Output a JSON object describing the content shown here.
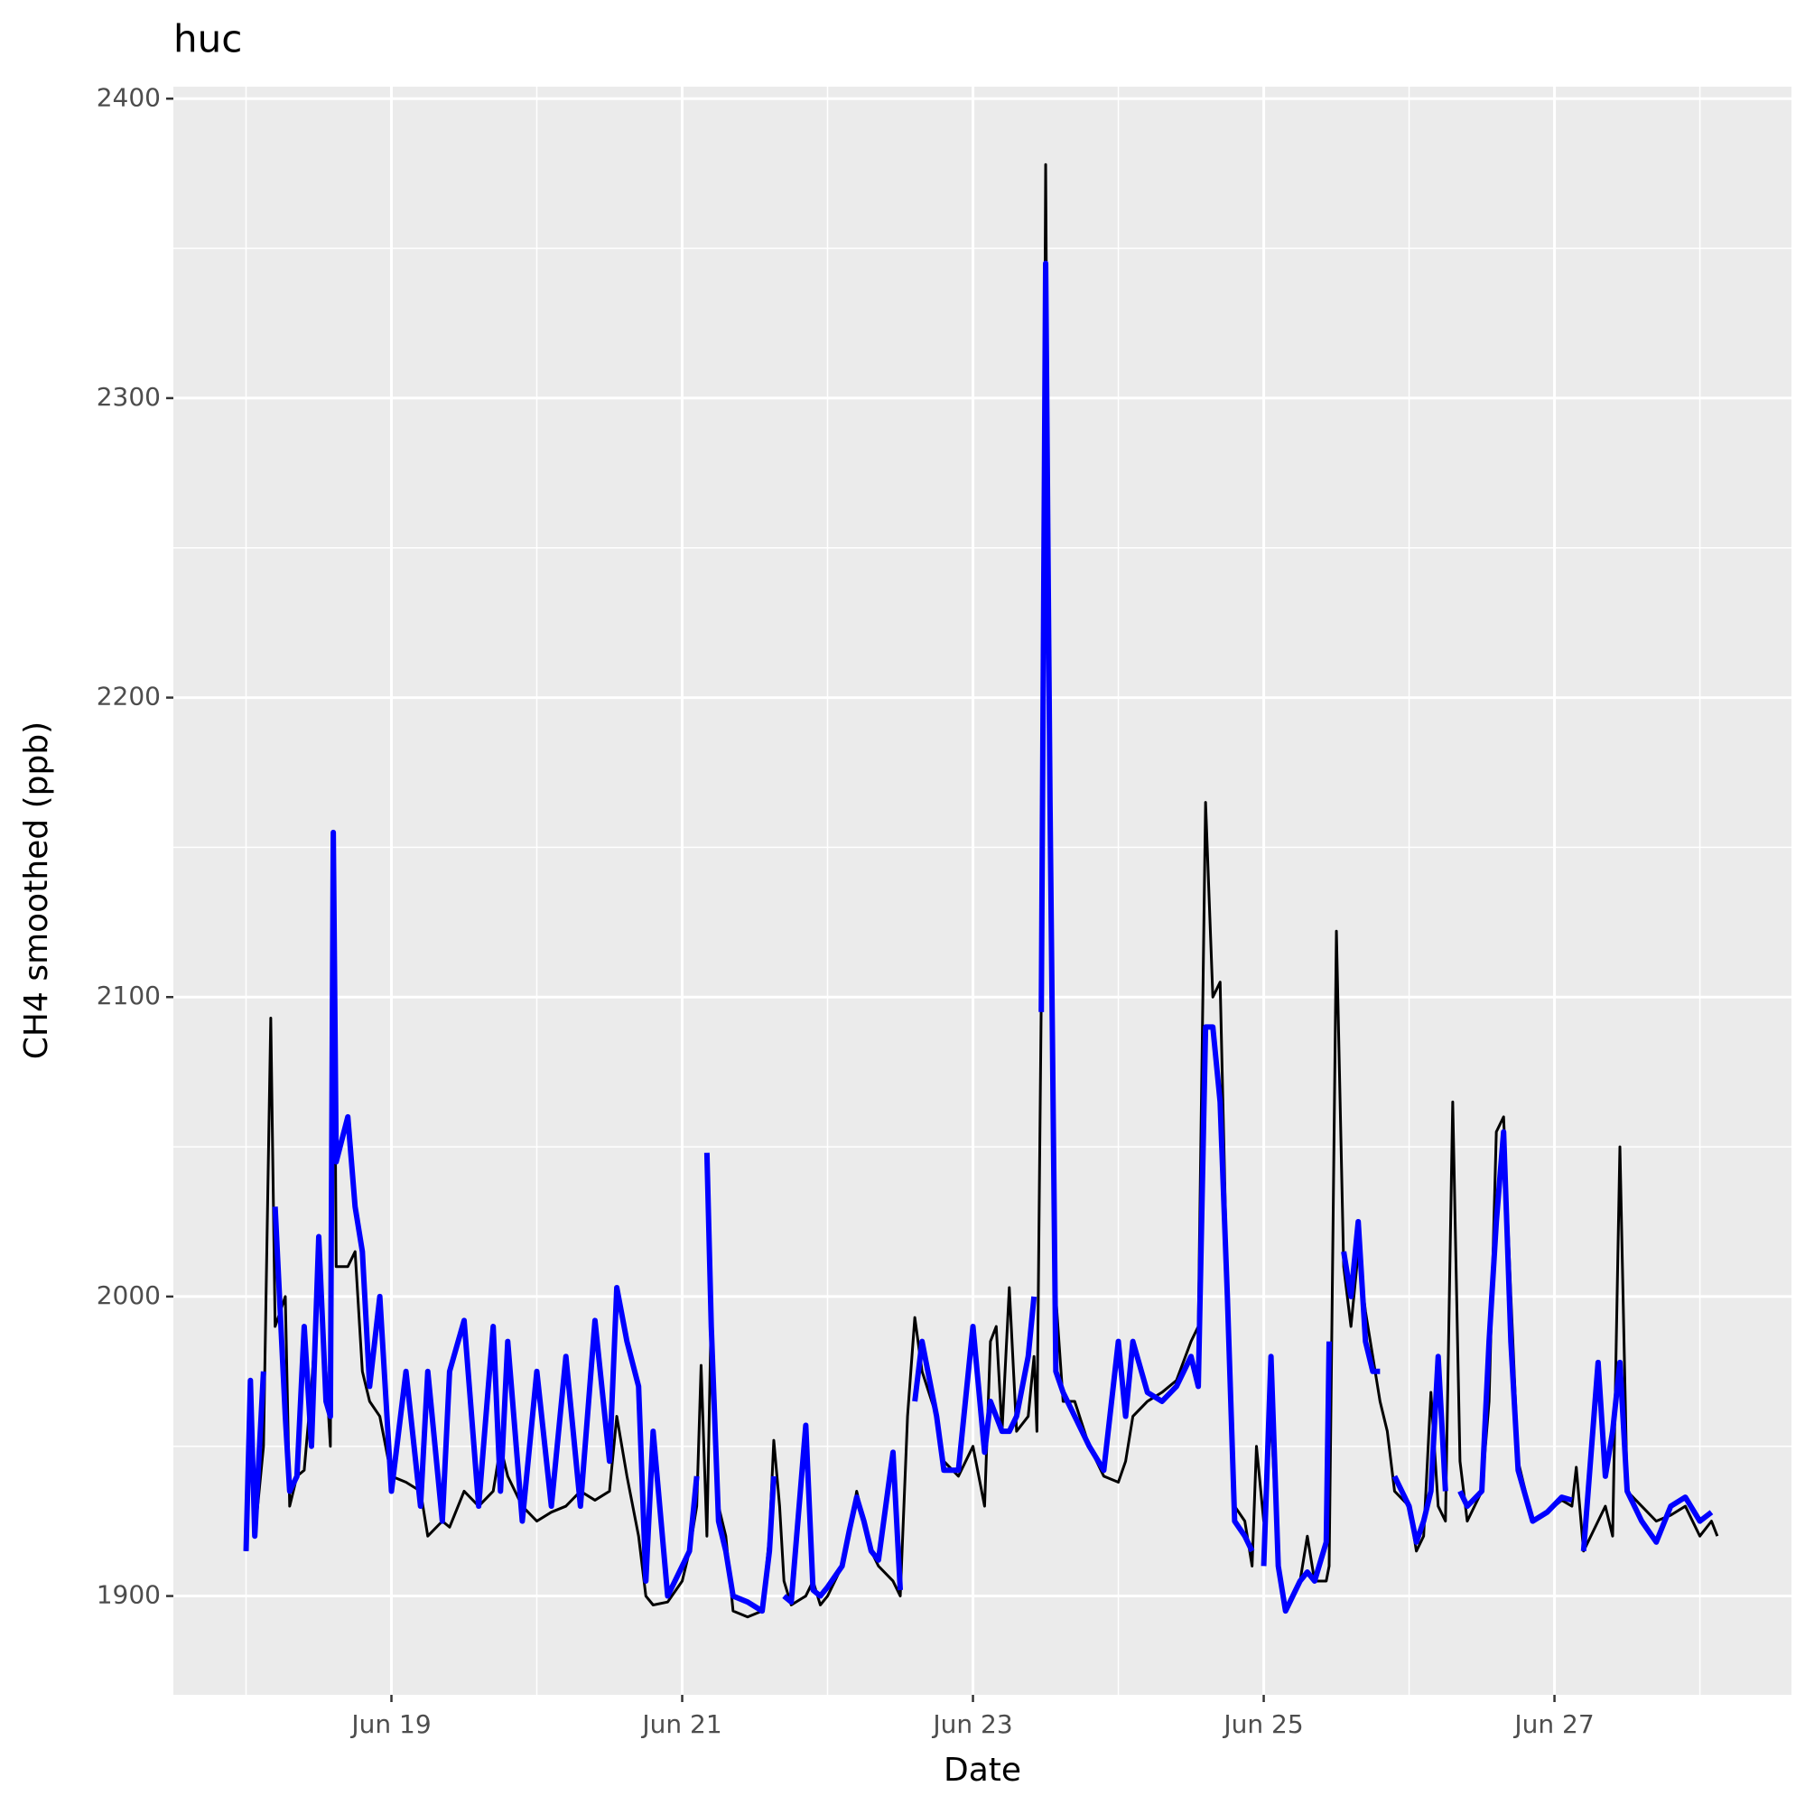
{
  "chart_data": {
    "type": "line",
    "title": "huc",
    "x_label": "Date",
    "y_label": "CH4 smoothed (ppb)",
    "x": [
      18.0,
      18.03,
      18.06,
      18.12,
      18.17,
      18.2,
      18.27,
      18.3,
      18.35,
      18.4,
      18.45,
      18.5,
      18.55,
      18.58,
      18.6,
      18.62,
      18.7,
      18.75,
      18.8,
      18.85,
      18.92,
      19.0,
      19.1,
      19.2,
      19.25,
      19.35,
      19.4,
      19.5,
      19.6,
      19.7,
      19.75,
      19.8,
      19.9,
      20.0,
      20.1,
      20.2,
      20.3,
      20.4,
      20.5,
      20.55,
      20.62,
      20.7,
      20.75,
      20.8,
      20.9,
      21.0,
      21.05,
      21.1,
      21.13,
      21.17,
      21.2,
      21.25,
      21.3,
      21.35,
      21.45,
      21.55,
      21.6,
      21.63,
      21.67,
      21.7,
      21.75,
      21.85,
      21.9,
      21.95,
      22.0,
      22.1,
      22.15,
      22.2,
      22.25,
      22.3,
      22.35,
      22.45,
      22.5,
      22.55,
      22.6,
      22.65,
      22.75,
      22.8,
      22.9,
      23.0,
      23.08,
      23.12,
      23.16,
      23.2,
      23.25,
      23.3,
      23.38,
      23.42,
      23.44,
      23.47,
      23.5,
      23.53,
      23.57,
      23.62,
      23.7,
      23.8,
      23.9,
      24.0,
      24.05,
      24.1,
      24.2,
      24.3,
      24.4,
      24.5,
      24.55,
      24.6,
      24.65,
      24.7,
      24.75,
      24.8,
      24.87,
      24.92,
      24.95,
      25.0,
      25.05,
      25.1,
      25.15,
      25.25,
      25.3,
      25.35,
      25.43,
      25.45,
      25.5,
      25.55,
      25.6,
      25.65,
      25.7,
      25.75,
      25.8,
      25.85,
      25.9,
      26.0,
      26.05,
      26.1,
      26.15,
      26.2,
      26.25,
      26.3,
      26.35,
      26.4,
      26.5,
      26.55,
      26.6,
      26.65,
      26.7,
      26.75,
      26.85,
      26.95,
      27.05,
      27.12,
      27.15,
      27.2,
      27.3,
      27.35,
      27.4,
      27.45,
      27.5,
      27.6,
      27.7,
      27.8,
      27.9,
      28.0,
      28.08,
      28.12
    ],
    "series": [
      {
        "color": "#000000",
        "width": 3,
        "values": [
          1915,
          1968,
          1920,
          1950,
          2093,
          1990,
          2000,
          1930,
          1940,
          1942,
          1970,
          2005,
          1975,
          1950,
          2155,
          2010,
          2010,
          2015,
          1975,
          1965,
          1960,
          1940,
          1938,
          1935,
          1920,
          1925,
          1923,
          1935,
          1930,
          1935,
          1950,
          1940,
          1930,
          1925,
          1928,
          1930,
          1935,
          1932,
          1935,
          1960,
          1940,
          1920,
          1900,
          1897,
          1898,
          1905,
          1915,
          1930,
          1977,
          1920,
          1996,
          1930,
          1920,
          1895,
          1893,
          1895,
          1920,
          1952,
          1930,
          1905,
          1897,
          1900,
          1905,
          1897,
          1900,
          1910,
          1920,
          1935,
          1925,
          1915,
          1910,
          1905,
          1900,
          1960,
          1993,
          1975,
          1960,
          1945,
          1940,
          1950,
          1930,
          1985,
          1990,
          1955,
          2003,
          1955,
          1960,
          1980,
          1955,
          2100,
          2378,
          2140,
          2000,
          1965,
          1965,
          1950,
          1940,
          1938,
          1945,
          1960,
          1965,
          1968,
          1972,
          1985,
          1990,
          2165,
          2100,
          2105,
          2000,
          1930,
          1925,
          1910,
          1950,
          1925,
          1960,
          1910,
          1895,
          1905,
          1920,
          1905,
          1905,
          1910,
          2122,
          2010,
          1990,
          2015,
          1995,
          1980,
          1965,
          1955,
          1935,
          1930,
          1915,
          1920,
          1968,
          1930,
          1925,
          2065,
          1945,
          1925,
          1935,
          1965,
          2055,
          2060,
          2000,
          1945,
          1925,
          1928,
          1932,
          1930,
          1943,
          1915,
          1925,
          1930,
          1920,
          2050,
          1935,
          1930,
          1925,
          1927,
          1930,
          1920,
          1925,
          1920
        ]
      },
      {
        "color": "#0000ff",
        "width": 6,
        "values": [
          1915,
          1972,
          1920,
          1975,
          null,
          2030,
          1960,
          1935,
          1940,
          1990,
          1950,
          2020,
          1965,
          1960,
          2155,
          2045,
          2060,
          2030,
          2015,
          1970,
          2000,
          1935,
          1975,
          1930,
          1975,
          1925,
          1975,
          1992,
          1930,
          1990,
          1935,
          1985,
          1925,
          1975,
          1930,
          1980,
          1930,
          1992,
          1945,
          2003,
          1985,
          1970,
          1905,
          1955,
          1900,
          1910,
          1915,
          1940,
          null,
          2048,
          1990,
          1925,
          1915,
          1900,
          1898,
          1895,
          1915,
          1940,
          null,
          1900,
          1898,
          1957,
          1902,
          1900,
          1903,
          1910,
          1922,
          1933,
          1925,
          1915,
          1912,
          1948,
          1902,
          null,
          1965,
          1985,
          1960,
          1942,
          1942,
          1990,
          1948,
          1965,
          1960,
          1955,
          1955,
          1960,
          1980,
          2000,
          null,
          2095,
          2345,
          2165,
          1975,
          1968,
          1960,
          1950,
          1942,
          1985,
          1960,
          1985,
          1968,
          1965,
          1970,
          1980,
          1970,
          2090,
          2090,
          2065,
          2000,
          1925,
          1920,
          1915,
          null,
          1910,
          1980,
          1910,
          1895,
          1905,
          1908,
          1905,
          1918,
          1985,
          null,
          2015,
          2000,
          2025,
          1985,
          1975,
          1975,
          null,
          1940,
          1930,
          1918,
          1925,
          1935,
          1980,
          1935,
          null,
          1935,
          1930,
          1935,
          1985,
          2025,
          2055,
          1985,
          1942,
          1925,
          1928,
          1933,
          1932,
          null,
          1915,
          1978,
          1940,
          1955,
          1978,
          1935,
          1925,
          1918,
          1930,
          1933,
          1925,
          1928,
          null
        ]
      }
    ],
    "xlim": [
      17.5,
      28.63
    ],
    "xticks": [
      {
        "value": 19,
        "label": "Jun 19"
      },
      {
        "value": 21,
        "label": "Jun 21"
      },
      {
        "value": 23,
        "label": "Jun 23"
      },
      {
        "value": 25,
        "label": "Jun 25"
      },
      {
        "value": 27,
        "label": "Jun 27"
      }
    ],
    "xminor": [
      18,
      20,
      22,
      24,
      26,
      28
    ],
    "ylim": [
      1867,
      2404
    ],
    "yticks": [
      1900,
      2000,
      2100,
      2200,
      2300,
      2400
    ],
    "yminor": [
      1950,
      2050,
      2150,
      2250,
      2350
    ],
    "grid": true
  }
}
